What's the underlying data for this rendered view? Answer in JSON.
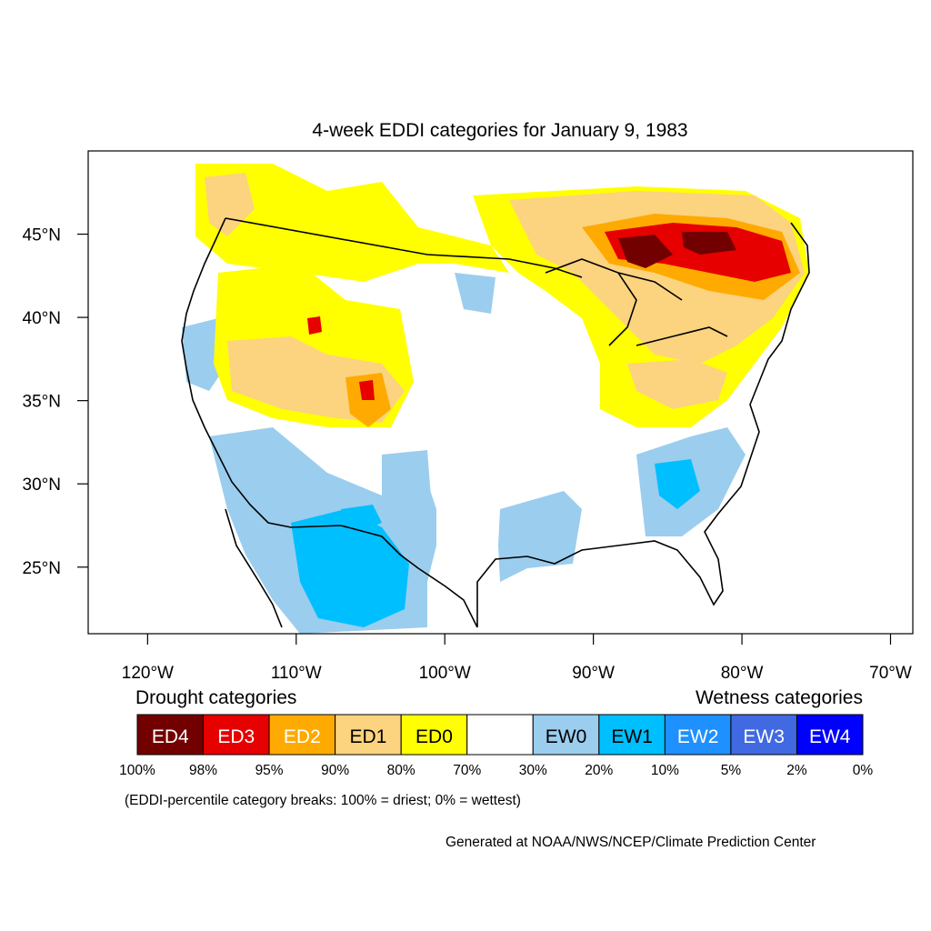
{
  "title": "4-week EDDI categories for January 9, 1983",
  "map": {
    "lat_labels": [
      "45°N",
      "40°N",
      "35°N",
      "30°N",
      "25°N"
    ],
    "lat_values": [
      45,
      40,
      35,
      30,
      25
    ],
    "lon_labels": [
      "120°W",
      "110°W",
      "100°W",
      "90°W",
      "80°W",
      "70°W"
    ],
    "lon_values": [
      -120,
      -110,
      -100,
      -90,
      -80,
      -70
    ],
    "lon_range": [
      -124,
      -68.5
    ],
    "lat_range": [
      21,
      50
    ]
  },
  "legend": {
    "drought_heading": "Drought categories",
    "wetness_heading": "Wetness categories",
    "categories": [
      {
        "label": "ED4",
        "color": "#730000",
        "text_color": "#ffffff"
      },
      {
        "label": "ED3",
        "color": "#e60000",
        "text_color": "#ffffff"
      },
      {
        "label": "ED2",
        "color": "#ffaa00",
        "text_color": "#ffffff"
      },
      {
        "label": "ED1",
        "color": "#fcd37f",
        "text_color": "#000000"
      },
      {
        "label": "ED0",
        "color": "#ffff00",
        "text_color": "#000000"
      },
      {
        "label": "",
        "color": "#ffffff",
        "text_color": "#000000"
      },
      {
        "label": "EW0",
        "color": "#9bcdee",
        "text_color": "#000000"
      },
      {
        "label": "EW1",
        "color": "#00bfff",
        "text_color": "#000000"
      },
      {
        "label": "EW2",
        "color": "#1e90ff",
        "text_color": "#ffffff"
      },
      {
        "label": "EW3",
        "color": "#4169e1",
        "text_color": "#ffffff"
      },
      {
        "label": "EW4",
        "color": "#0000ff",
        "text_color": "#ffffff"
      }
    ],
    "breaks": [
      "100%",
      "98%",
      "95%",
      "90%",
      "80%",
      "70%",
      "30%",
      "20%",
      "10%",
      "5%",
      "2%",
      "0%"
    ],
    "note": "(EDDI-percentile category breaks: 100% = driest; 0% = wettest)"
  },
  "credit": "Generated at NOAA/NWS/NCEP/Climate Prediction Center"
}
